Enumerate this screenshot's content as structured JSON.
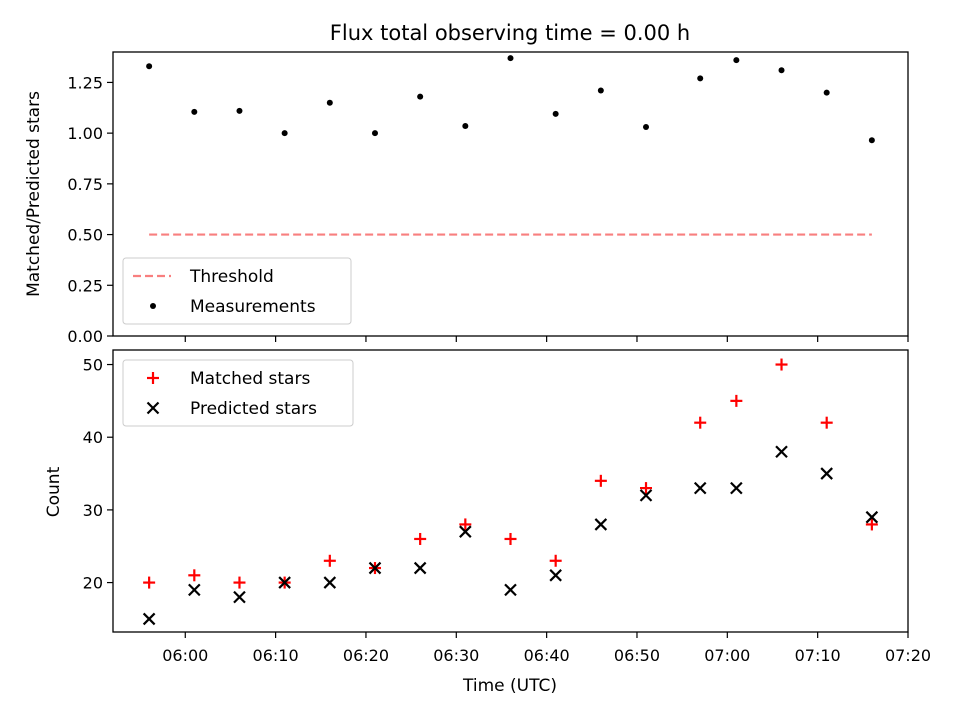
{
  "chart_data": [
    {
      "type": "scatter",
      "title": "Flux total observing time = 0.00 h",
      "xlabel": "",
      "ylabel": "Matched/Predicted stars",
      "ylim": [
        0,
        1.4
      ],
      "xlim": [
        "05:52",
        "07:20"
      ],
      "yticks": [
        "0.00",
        "0.25",
        "0.50",
        "0.75",
        "1.00",
        "1.25"
      ],
      "grid": false,
      "legend_position": "lower-left",
      "series": [
        {
          "name": "Threshold",
          "style": "dashed-line",
          "color": "#f87f7f",
          "x": [
            "05:56",
            "07:16"
          ],
          "values": [
            0.5,
            0.5
          ]
        },
        {
          "name": "Measurements",
          "style": "dot",
          "color": "#000000",
          "x": [
            "05:56",
            "06:01",
            "06:06",
            "06:11",
            "06:16",
            "06:21",
            "06:26",
            "06:31",
            "06:36",
            "06:41",
            "06:46",
            "06:51",
            "06:57",
            "07:01",
            "07:06",
            "07:11",
            "07:16"
          ],
          "values": [
            1.33,
            1.105,
            1.11,
            1.0,
            1.15,
            1.0,
            1.18,
            1.035,
            1.37,
            1.095,
            1.21,
            1.03,
            1.27,
            1.36,
            1.31,
            1.2,
            0.965
          ]
        }
      ]
    },
    {
      "type": "scatter",
      "title": "",
      "xlabel": "Time (UTC)",
      "ylabel": "Count",
      "ylim": [
        13.2,
        52
      ],
      "xlim": [
        "05:52",
        "07:20"
      ],
      "xticks": [
        "06:00",
        "06:10",
        "06:20",
        "06:30",
        "06:40",
        "06:50",
        "07:00",
        "07:10",
        "07:20"
      ],
      "yticks": [
        "20",
        "30",
        "40",
        "50"
      ],
      "grid": false,
      "legend_position": "upper-left",
      "series": [
        {
          "name": "Matched stars",
          "style": "plus",
          "color": "#ff0000",
          "x": [
            "05:56",
            "06:01",
            "06:06",
            "06:11",
            "06:16",
            "06:21",
            "06:26",
            "06:31",
            "06:36",
            "06:41",
            "06:46",
            "06:51",
            "06:57",
            "07:01",
            "07:06",
            "07:11",
            "07:16"
          ],
          "values": [
            20,
            21,
            20,
            20,
            23,
            22,
            26,
            28,
            26,
            23,
            34,
            33,
            42,
            45,
            50,
            42,
            28
          ]
        },
        {
          "name": "Predicted stars",
          "style": "x",
          "color": "#000000",
          "x": [
            "05:56",
            "06:01",
            "06:06",
            "06:11",
            "06:16",
            "06:21",
            "06:26",
            "06:31",
            "06:36",
            "06:41",
            "06:46",
            "06:51",
            "06:57",
            "07:01",
            "07:06",
            "07:11",
            "07:16"
          ],
          "values": [
            15,
            19,
            18,
            20,
            20,
            22,
            22,
            27,
            19,
            21,
            28,
            32,
            33,
            33,
            38,
            35,
            29
          ]
        }
      ]
    }
  ]
}
